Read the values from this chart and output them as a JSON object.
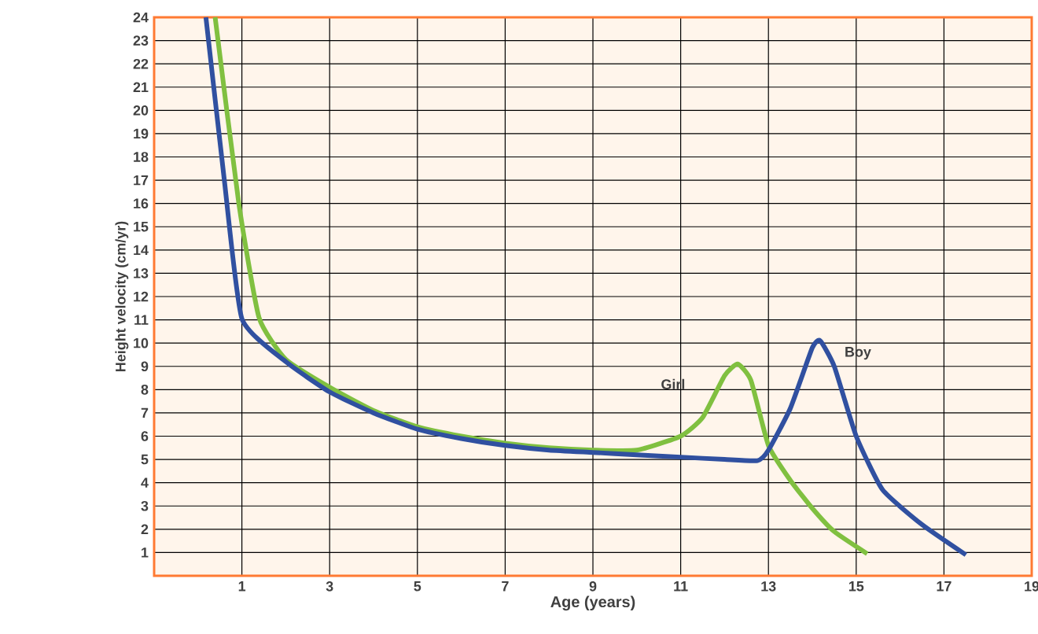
{
  "chart_data": {
    "type": "line",
    "xlabel": "Age (years)",
    "ylabel": "Height velocity (cm/yr)",
    "xlim": [
      -1,
      19
    ],
    "xticks": [
      1,
      3,
      5,
      7,
      9,
      11,
      13,
      15,
      17,
      19
    ],
    "ylim": [
      0,
      24
    ],
    "yticks": [
      1,
      2,
      3,
      4,
      5,
      6,
      7,
      8,
      9,
      10,
      11,
      12,
      13,
      14,
      15,
      16,
      17,
      18,
      19,
      20,
      21,
      22,
      23,
      24
    ],
    "grid": true,
    "marker": "none",
    "line_style": "solid",
    "legend": false,
    "series": [
      {
        "name": "Girl",
        "color": "#80c040",
        "x": [
          0.39,
          0.93,
          1.39,
          2,
          3,
          4,
          5,
          6,
          7,
          8,
          9,
          10,
          11,
          11.5,
          12,
          12.3,
          12.6,
          13,
          13.5,
          14,
          14.5,
          15.25
        ],
        "values": [
          24,
          16,
          11.1,
          9.3,
          8.1,
          7.1,
          6.4,
          6.0,
          5.7,
          5.5,
          5.4,
          5.4,
          6.0,
          6.8,
          8.6,
          9.1,
          8.4,
          5.6,
          4.1,
          2.9,
          1.9,
          0.95
        ]
      },
      {
        "name": "Boy",
        "color": "#3050a0",
        "x": [
          0.18,
          0.6,
          1.0,
          2,
          3,
          4,
          5,
          6,
          7,
          8,
          9,
          10,
          11,
          12,
          12.75,
          13,
          13.5,
          14,
          14.18,
          14.5,
          15,
          15.6,
          16.5,
          17.5
        ],
        "values": [
          24,
          17,
          11.05,
          9.2,
          7.9,
          7.0,
          6.3,
          5.9,
          5.6,
          5.4,
          5.3,
          5.2,
          5.1,
          5.0,
          4.95,
          5.4,
          7.2,
          9.8,
          10.1,
          9.0,
          6.0,
          3.7,
          2.2,
          0.9
        ]
      }
    ]
  }
}
